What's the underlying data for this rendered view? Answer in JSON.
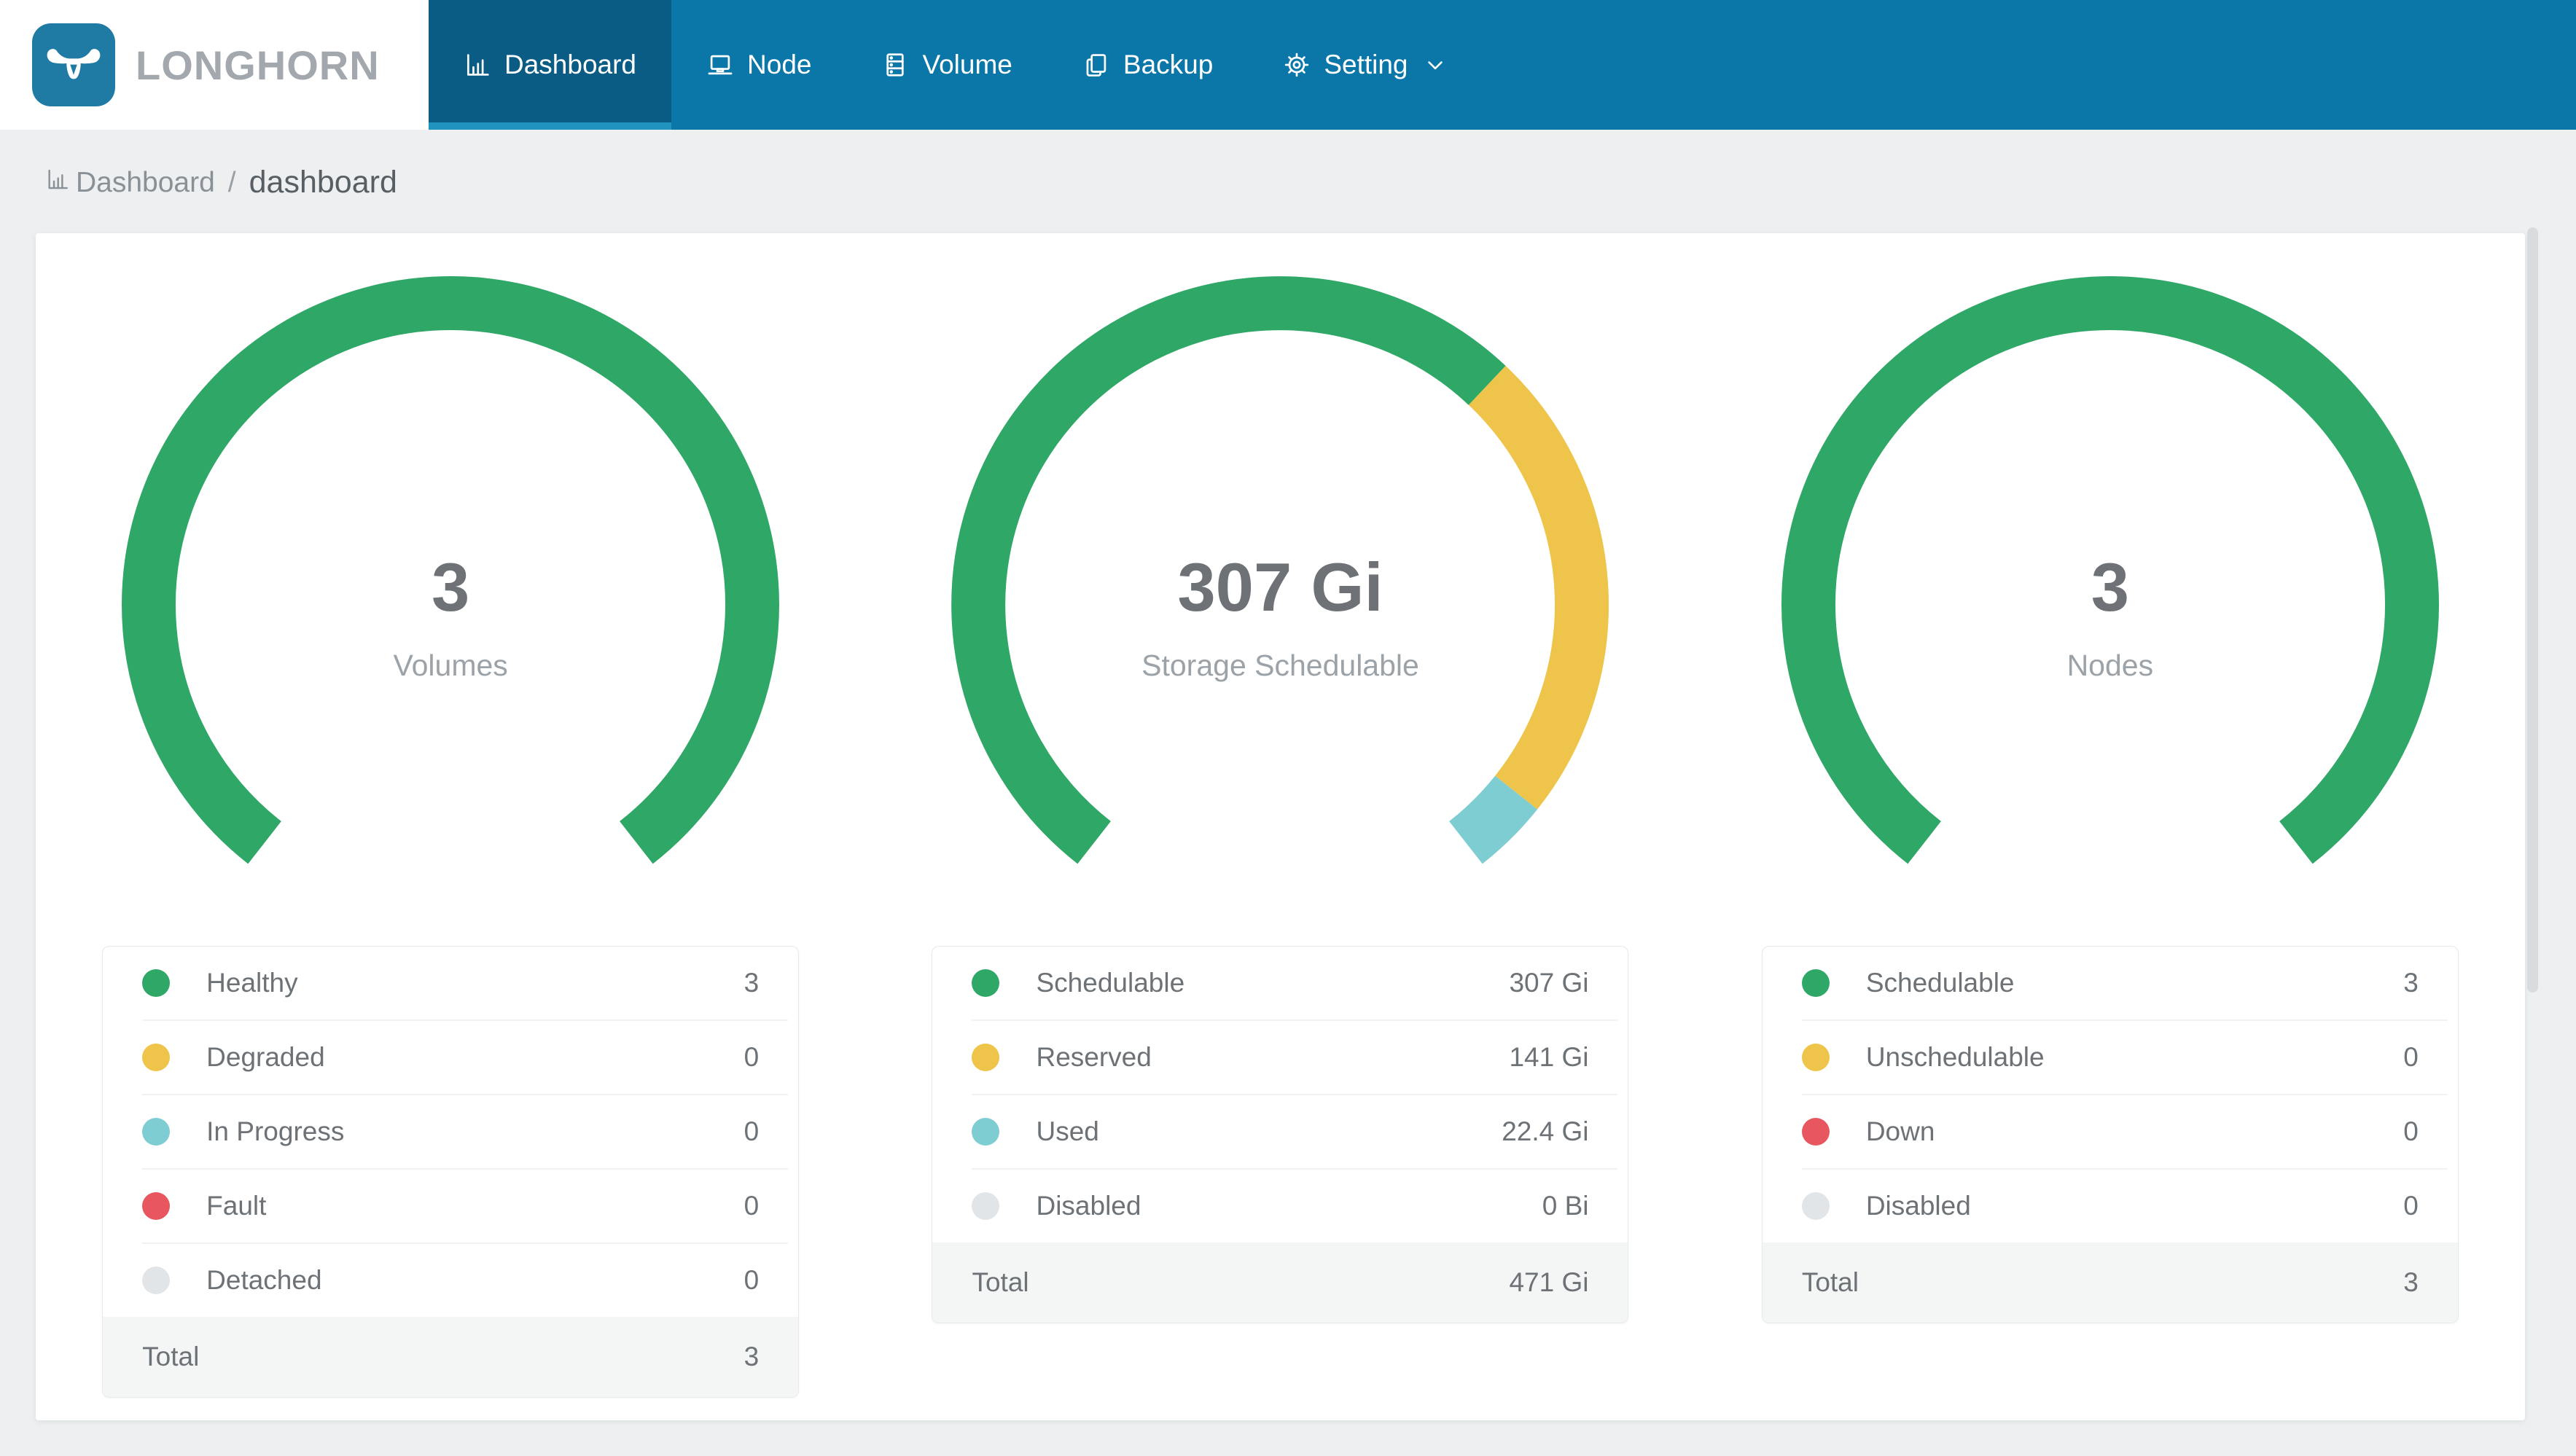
{
  "header": {
    "brand": "LONGHORN",
    "nav": [
      {
        "label": "Dashboard",
        "icon": "bar-chart-icon",
        "active": true
      },
      {
        "label": "Node",
        "icon": "laptop-icon",
        "active": false
      },
      {
        "label": "Volume",
        "icon": "database-icon",
        "active": false
      },
      {
        "label": "Backup",
        "icon": "copy-icon",
        "active": false
      },
      {
        "label": "Setting",
        "icon": "gear-icon",
        "active": false,
        "has_dropdown": true
      }
    ]
  },
  "breadcrumb": {
    "section": "Dashboard",
    "separator": "/",
    "page": "dashboard"
  },
  "colors": {
    "header_bg": "#0b76a8",
    "active_tab_bg": "#0a5c84",
    "active_tab_underline": "#2093bf",
    "logo_bg": "#1f7aa4",
    "page_bg": "#edeff1",
    "green": "#2fa767",
    "yellow": "#eec54a",
    "teal": "#7ecdd2",
    "red": "#e8575f",
    "gray": "#e2e5e8"
  },
  "chart_data": [
    {
      "type": "gauge",
      "name": "volumes",
      "center_value": "3",
      "center_label": "Volumes",
      "start_deg": 218,
      "sweep_deg": 284,
      "segments": [
        {
          "label": "Healthy",
          "value": 3,
          "display": "3",
          "color": "#2fa767"
        },
        {
          "label": "Degraded",
          "value": 0,
          "display": "0",
          "color": "#eec54a"
        },
        {
          "label": "In Progress",
          "value": 0,
          "display": "0",
          "color": "#7ecdd2"
        },
        {
          "label": "Fault",
          "value": 0,
          "display": "0",
          "color": "#e8575f"
        },
        {
          "label": "Detached",
          "value": 0,
          "display": "0",
          "color": "#e2e5e8"
        }
      ],
      "total": {
        "label": "Total",
        "display": "3"
      }
    },
    {
      "type": "gauge",
      "name": "storage-schedulable",
      "center_value": "307 Gi",
      "center_label": "Storage Schedulable",
      "start_deg": 218,
      "sweep_deg": 284,
      "segments": [
        {
          "label": "Schedulable",
          "value": 307,
          "display": "307 Gi",
          "color": "#2fa767"
        },
        {
          "label": "Reserved",
          "value": 141,
          "display": "141 Gi",
          "color": "#eec54a"
        },
        {
          "label": "Used",
          "value": 22.4,
          "display": "22.4 Gi",
          "color": "#7ecdd2"
        },
        {
          "label": "Disabled",
          "value": 0,
          "display": "0 Bi",
          "color": "#e2e5e8"
        }
      ],
      "total": {
        "label": "Total",
        "display": "471 Gi"
      }
    },
    {
      "type": "gauge",
      "name": "nodes",
      "center_value": "3",
      "center_label": "Nodes",
      "start_deg": 218,
      "sweep_deg": 284,
      "segments": [
        {
          "label": "Schedulable",
          "value": 3,
          "display": "3",
          "color": "#2fa767"
        },
        {
          "label": "Unschedulable",
          "value": 0,
          "display": "0",
          "color": "#eec54a"
        },
        {
          "label": "Down",
          "value": 0,
          "display": "0",
          "color": "#e8575f"
        },
        {
          "label": "Disabled",
          "value": 0,
          "display": "0",
          "color": "#e2e5e8"
        }
      ],
      "total": {
        "label": "Total",
        "display": "3"
      }
    }
  ]
}
